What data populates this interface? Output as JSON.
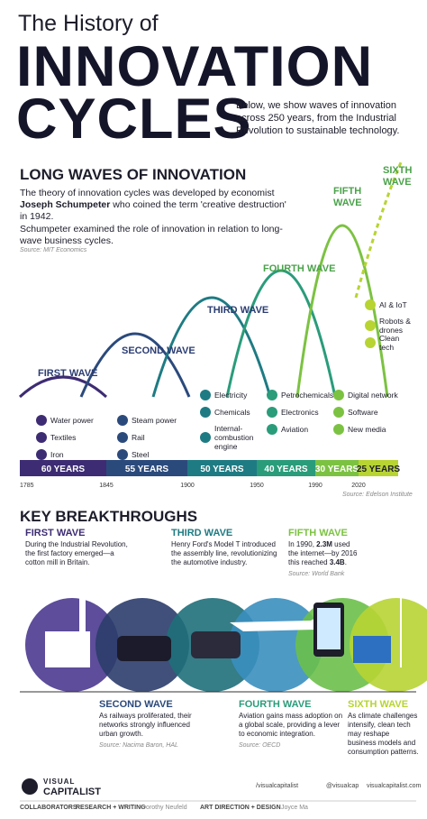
{
  "header": {
    "kicker": "The History of",
    "title_line1": "INNOVATION",
    "title_line2": "CYCLES",
    "intro": "Below, we show waves of innovation across 250 years, from the Industrial Revolution to sustainable technology."
  },
  "long_waves": {
    "heading": "LONG WAVES OF INNOVATION",
    "para1": [
      "The theory of innovation cycles was developed by economist ",
      "Joseph Schumpeter",
      " who coined the term 'creative destruction' in 1942."
    ],
    "para2": "Schumpeter examined the role of innovation in relation to long-wave business cycles.",
    "source": "Source: MIT Economics",
    "waves": [
      {
        "label": "FIRST WAVE",
        "items": [
          "Water power",
          "Textiles",
          "Iron"
        ]
      },
      {
        "label": "SECOND WAVE",
        "items": [
          "Steam power",
          "Rail",
          "Steel"
        ]
      },
      {
        "label": "THIRD WAVE",
        "items": [
          "Electricity",
          "Chemicals",
          "Internal-combustion engine"
        ]
      },
      {
        "label": "FOURTH WAVE",
        "items": [
          "Petrochemicals",
          "Electronics",
          "Aviation"
        ]
      },
      {
        "label": "FIFTH WAVE",
        "items": [
          "Digital network",
          "Software",
          "New media"
        ]
      },
      {
        "label": "SIXTH WAVE",
        "items": [
          "AI & IoT",
          "Robots & drones",
          "Clean tech"
        ]
      }
    ],
    "durations": [
      "60 YEARS",
      "55 YEARS",
      "50 YEARS",
      "40 YEARS",
      "30 YEARS",
      "25 YEARS"
    ],
    "years": [
      "1785",
      "1845",
      "1900",
      "1950",
      "1990",
      "2020"
    ],
    "timeline_source": "Source: Edelson Institute"
  },
  "key_breakthroughs": {
    "heading": "KEY BREAKTHROUGHS",
    "items": [
      {
        "title": "FIRST WAVE",
        "text": [
          "During the Industrial Revolution, the first factory emerged—a cotton mill in Britain."
        ]
      },
      {
        "title": "SECOND WAVE",
        "text": [
          "As railways proliferated, their networks strongly influenced urban growth."
        ],
        "source": "Source: Nacima Baron, HAL"
      },
      {
        "title": "THIRD WAVE",
        "text": [
          "Henry Ford's Model T introduced the assembly line, revolutionizing the automotive industry."
        ]
      },
      {
        "title": "FOURTH WAVE",
        "text": [
          "Aviation gains mass adoption on a global scale, providing a lever to economic integration."
        ],
        "source": "Source: OECD"
      },
      {
        "title": "FIFTH WAVE",
        "text": [
          "In 1990, ",
          "2.3M",
          " used the internet—by 2016 this reached ",
          "3.4B",
          "."
        ],
        "source": "Source: World Bank"
      },
      {
        "title": "SIXTH WAVE",
        "text": [
          "As climate challenges intensify, clean tech may reshape business models and consumption patterns."
        ]
      }
    ]
  },
  "footer": {
    "brand_top": "VISUAL",
    "brand_bottom": "CAPITALIST",
    "facebook": "/visualcapitalist",
    "twitter": "@visualcap",
    "website": "visualcapitalist.com",
    "collaborators": "COLLABORATORS",
    "research_role": "RESEARCH + WRITING",
    "research_name": "Dorothy Neufeld",
    "design_role": "ART DIRECTION + DESIGN",
    "design_name": "Joyce Ma"
  }
}
